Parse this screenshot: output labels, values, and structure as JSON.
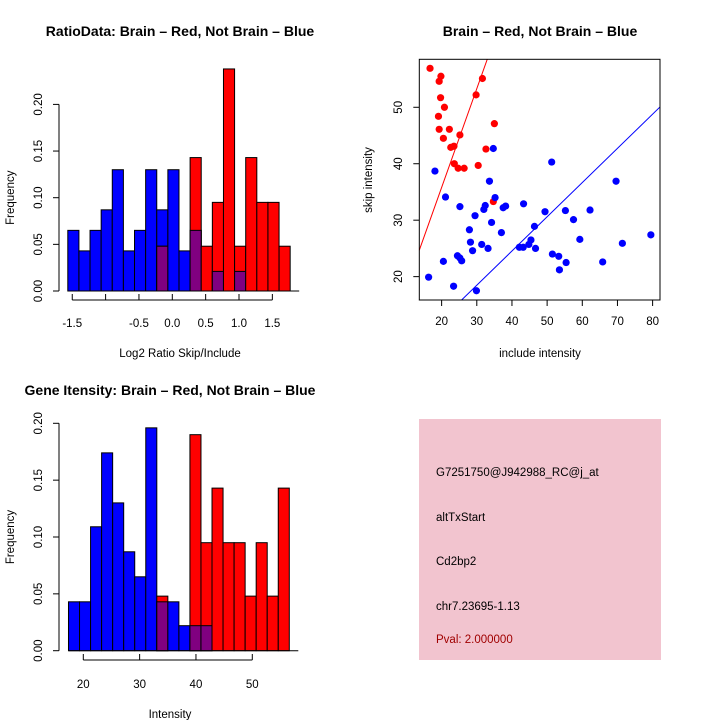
{
  "colors": {
    "blue": "#0000ff",
    "red": "#ff0000",
    "overlap": "#800080",
    "info_bg": "#f2c4cf",
    "pval": "#a00000"
  },
  "chart_data": [
    {
      "type": "bar",
      "title": "RatioData: Brain – Red, Not Brain – Blue",
      "xlabel": "Log2 Ratio Skip/Include",
      "ylabel": "Frequency",
      "bin_start": -1.5667,
      "bin_width": 0.1667,
      "xticks": [
        -1.5,
        -1.0,
        -0.5,
        0.0,
        0.5,
        1.0,
        1.5
      ],
      "xtick_labels": [
        "-1.5",
        "",
        "-0.5",
        "0.0",
        "0.5",
        "1.0",
        "1.5"
      ],
      "yticks": [
        0,
        0.05,
        0.1,
        0.15,
        0.2
      ],
      "ytick_labels": [
        "0.00",
        "0.05",
        "0.10",
        "0.15",
        "0.20"
      ],
      "series": [
        {
          "name": "Not Brain",
          "color": "blue",
          "values": [
            0.065,
            0.043,
            0.065,
            0.087,
            0.13,
            0.043,
            0.065,
            0.13,
            0.087,
            0.13,
            0.043,
            0.065,
            0,
            0.021,
            0,
            0.021,
            0,
            0,
            0,
            0
          ]
        },
        {
          "name": "Brain",
          "color": "red",
          "values": [
            0,
            0,
            0,
            0,
            0,
            0,
            0,
            0,
            0.048,
            0,
            0,
            0.143,
            0.048,
            0.095,
            0.238,
            0.048,
            0.143,
            0.095,
            0.095,
            0.048
          ]
        }
      ]
    },
    {
      "type": "scatter",
      "title": "Brain – Red, Not Brain – Blue",
      "xlabel": "include intensity",
      "ylabel": "skip intensity",
      "xlim": [
        13.65,
        82.1
      ],
      "ylim": [
        15.86,
        58.5
      ],
      "xticks": [
        20,
        30,
        40,
        50,
        60,
        70,
        80
      ],
      "xtick_labels": [
        "20",
        "30",
        "40",
        "50",
        "60",
        "70",
        "80"
      ],
      "yticks": [
        20,
        30,
        40,
        50
      ],
      "ytick_labels": [
        "20",
        "30",
        "40",
        "50"
      ],
      "series": [
        {
          "name": "Brain",
          "color": "red",
          "points": [
            [
              16.7,
              56.9
            ],
            [
              19.8,
              55.5
            ],
            [
              19.3,
              54.6
            ],
            [
              19.7,
              51.7
            ],
            [
              20.8,
              50.0
            ],
            [
              19.1,
              48.4
            ],
            [
              19.3,
              46.1
            ],
            [
              22.2,
              46.1
            ],
            [
              20.5,
              44.5
            ],
            [
              25.2,
              45.1
            ],
            [
              22.6,
              42.9
            ],
            [
              23.5,
              43.1
            ],
            [
              31.6,
              55.1
            ],
            [
              29.8,
              52.2
            ],
            [
              35.0,
              47.1
            ],
            [
              32.6,
              42.6
            ],
            [
              23.6,
              40.0
            ],
            [
              24.7,
              39.2
            ],
            [
              26.4,
              39.2
            ],
            [
              30.4,
              39.7
            ],
            [
              34.7,
              33.3
            ]
          ],
          "fit": {
            "slope": 1.75,
            "intercept": 0.8
          }
        },
        {
          "name": "Not Brain",
          "color": "blue",
          "points": [
            [
              16.3,
              19.9
            ],
            [
              18.1,
              38.7
            ],
            [
              21.1,
              34.1
            ],
            [
              20.5,
              22.7
            ],
            [
              23.4,
              18.3
            ],
            [
              24.5,
              23.7
            ],
            [
              25.2,
              23.3
            ],
            [
              25.7,
              22.8
            ],
            [
              25.2,
              32.4
            ],
            [
              29.5,
              30.8
            ],
            [
              27.9,
              28.3
            ],
            [
              28.2,
              26.1
            ],
            [
              28.8,
              24.6
            ],
            [
              29.9,
              17.5
            ],
            [
              31.4,
              25.7
            ],
            [
              33.2,
              25.0
            ],
            [
              32.0,
              31.9
            ],
            [
              32.4,
              32.6
            ],
            [
              33.6,
              36.9
            ],
            [
              34.7,
              42.7
            ],
            [
              35.2,
              34.0
            ],
            [
              34.2,
              29.6
            ],
            [
              37.0,
              27.8
            ],
            [
              37.5,
              32.2
            ],
            [
              38.2,
              32.5
            ],
            [
              43.3,
              32.9
            ],
            [
              42.1,
              25.2
            ],
            [
              43.2,
              25.2
            ],
            [
              44.8,
              25.7
            ],
            [
              45.4,
              26.5
            ],
            [
              46.7,
              25.0
            ],
            [
              46.4,
              28.9
            ],
            [
              49.4,
              31.5
            ],
            [
              51.3,
              40.3
            ],
            [
              51.5,
              24.0
            ],
            [
              53.3,
              23.6
            ],
            [
              53.5,
              21.2
            ],
            [
              55.4,
              22.5
            ],
            [
              55.2,
              31.7
            ],
            [
              57.5,
              30.1
            ],
            [
              59.3,
              26.6
            ],
            [
              62.2,
              31.8
            ],
            [
              65.8,
              22.6
            ],
            [
              69.6,
              36.9
            ],
            [
              71.4,
              25.9
            ],
            [
              79.5,
              27.4
            ]
          ],
          "fit": {
            "slope": 0.606,
            "intercept": 0.3
          }
        }
      ]
    },
    {
      "type": "bar",
      "title": "Gene Itensity: Brain – Red, Not Brain – Blue",
      "xlabel": "Intensity",
      "ylabel": "Frequency",
      "bin_start": 17.37,
      "bin_width": 1.96,
      "xticks": [
        20,
        30,
        40,
        50
      ],
      "xtick_labels": [
        "20",
        "30",
        "40",
        "50"
      ],
      "yticks": [
        0,
        0.05,
        0.1,
        0.15,
        0.2
      ],
      "ytick_labels": [
        "0.00",
        "0.05",
        "0.10",
        "0.15",
        "0.20"
      ],
      "series": [
        {
          "name": "Not Brain",
          "color": "blue",
          "values": [
            0.043,
            0.043,
            0.109,
            0.174,
            0.13,
            0.087,
            0.065,
            0.196,
            0.043,
            0.043,
            0.022,
            0.022,
            0.022,
            0,
            0,
            0,
            0,
            0,
            0,
            0
          ]
        },
        {
          "name": "Brain",
          "color": "red",
          "values": [
            0,
            0,
            0,
            0,
            0,
            0,
            0,
            0,
            0.048,
            0,
            0,
            0.19,
            0.095,
            0.143,
            0.095,
            0.095,
            0.048,
            0.095,
            0.048,
            0.143
          ]
        }
      ]
    }
  ],
  "info_box": {
    "probe_id": "G7251750@J942988_RC@j_at",
    "event_type": "altTxStart",
    "gene": "Cd2bp2",
    "location": "chr7.23695-1.13",
    "pval": "Pval: 2.000000"
  }
}
